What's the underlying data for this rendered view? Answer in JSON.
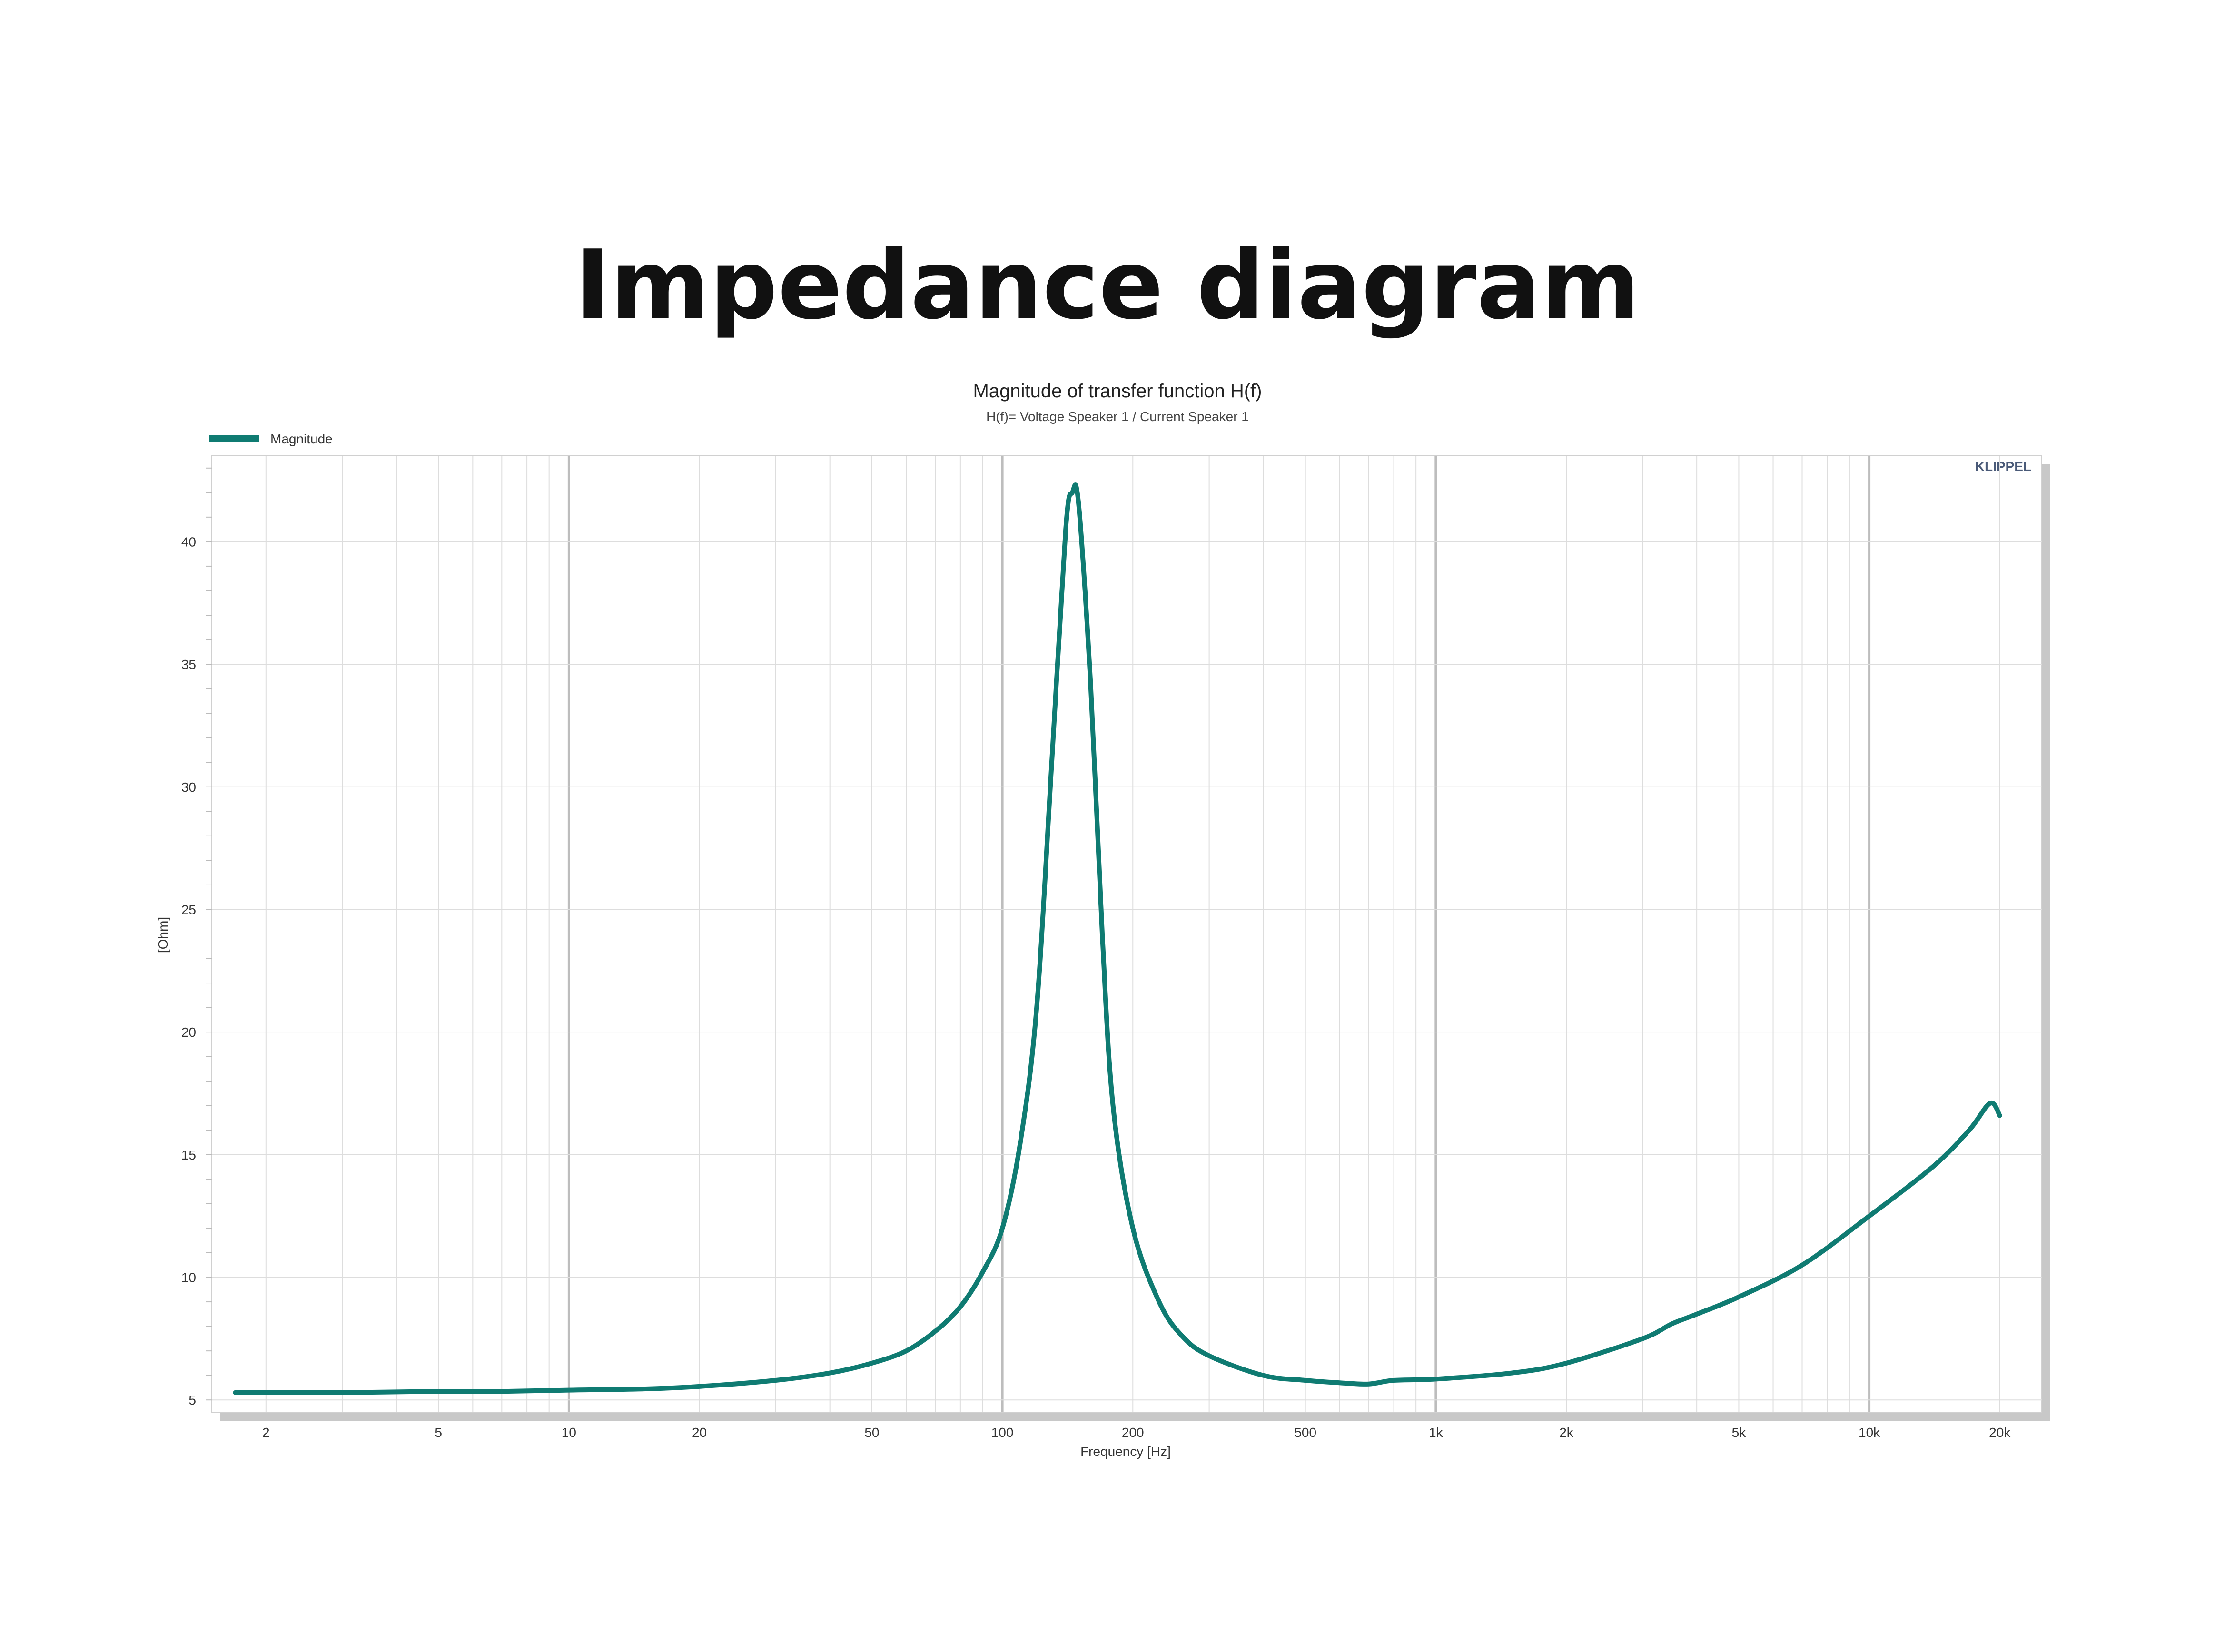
{
  "page": {
    "title": "Impedance diagram"
  },
  "chart_data": {
    "type": "line",
    "title": "Magnitude of transfer function H(f)",
    "subtitle": "H(f)= Voltage Speaker 1 / Current Speaker 1",
    "xlabel": "Frequency [Hz]",
    "ylabel": "[Ohm]",
    "watermark": "KLIPPEL",
    "x_scale": "log",
    "xlim": [
      1.5,
      25000
    ],
    "ylim": [
      4.5,
      43.5
    ],
    "grid": true,
    "legend": {
      "placement": "top-left",
      "entries": [
        "Magnitude"
      ]
    },
    "x_ticks": [
      {
        "value": 2,
        "label": "2"
      },
      {
        "value": 5,
        "label": "5"
      },
      {
        "value": 10,
        "label": "10"
      },
      {
        "value": 20,
        "label": "20"
      },
      {
        "value": 50,
        "label": "50"
      },
      {
        "value": 100,
        "label": "100"
      },
      {
        "value": 200,
        "label": "200"
      },
      {
        "value": 500,
        "label": "500"
      },
      {
        "value": 1000,
        "label": "1k"
      },
      {
        "value": 2000,
        "label": "2k"
      },
      {
        "value": 5000,
        "label": "5k"
      },
      {
        "value": 10000,
        "label": "10k"
      },
      {
        "value": 20000,
        "label": "20k"
      }
    ],
    "y_ticks": [
      {
        "value": 5,
        "label": "5"
      },
      {
        "value": 10,
        "label": "10"
      },
      {
        "value": 15,
        "label": "15"
      },
      {
        "value": 20,
        "label": "20"
      },
      {
        "value": 25,
        "label": "25"
      },
      {
        "value": 30,
        "label": "30"
      },
      {
        "value": 35,
        "label": "35"
      },
      {
        "value": 40,
        "label": "40"
      }
    ],
    "series": [
      {
        "name": "Magnitude",
        "color": "#0f7b72",
        "x": [
          1.7,
          2,
          3,
          5,
          7,
          10,
          15,
          20,
          30,
          40,
          50,
          60,
          70,
          80,
          90,
          100,
          110,
          120,
          130,
          140,
          145,
          150,
          160,
          170,
          180,
          200,
          230,
          260,
          300,
          400,
          500,
          600,
          700,
          800,
          1000,
          1500,
          2000,
          3000,
          3500,
          4000,
          5000,
          7000,
          10000,
          14000,
          17000,
          19000,
          20000
        ],
        "values": [
          5.3,
          5.3,
          5.3,
          5.35,
          5.35,
          5.4,
          5.45,
          5.55,
          5.8,
          6.1,
          6.5,
          7.0,
          7.8,
          8.8,
          10.2,
          12.0,
          15.5,
          21.0,
          31.0,
          40.5,
          42.0,
          41.5,
          34.0,
          24.0,
          17.0,
          12.0,
          9.0,
          7.6,
          6.8,
          6.0,
          5.8,
          5.7,
          5.65,
          5.8,
          5.85,
          6.1,
          6.5,
          7.5,
          8.1,
          8.5,
          9.2,
          10.5,
          12.5,
          14.5,
          16.0,
          17.1,
          16.6
        ]
      }
    ]
  }
}
